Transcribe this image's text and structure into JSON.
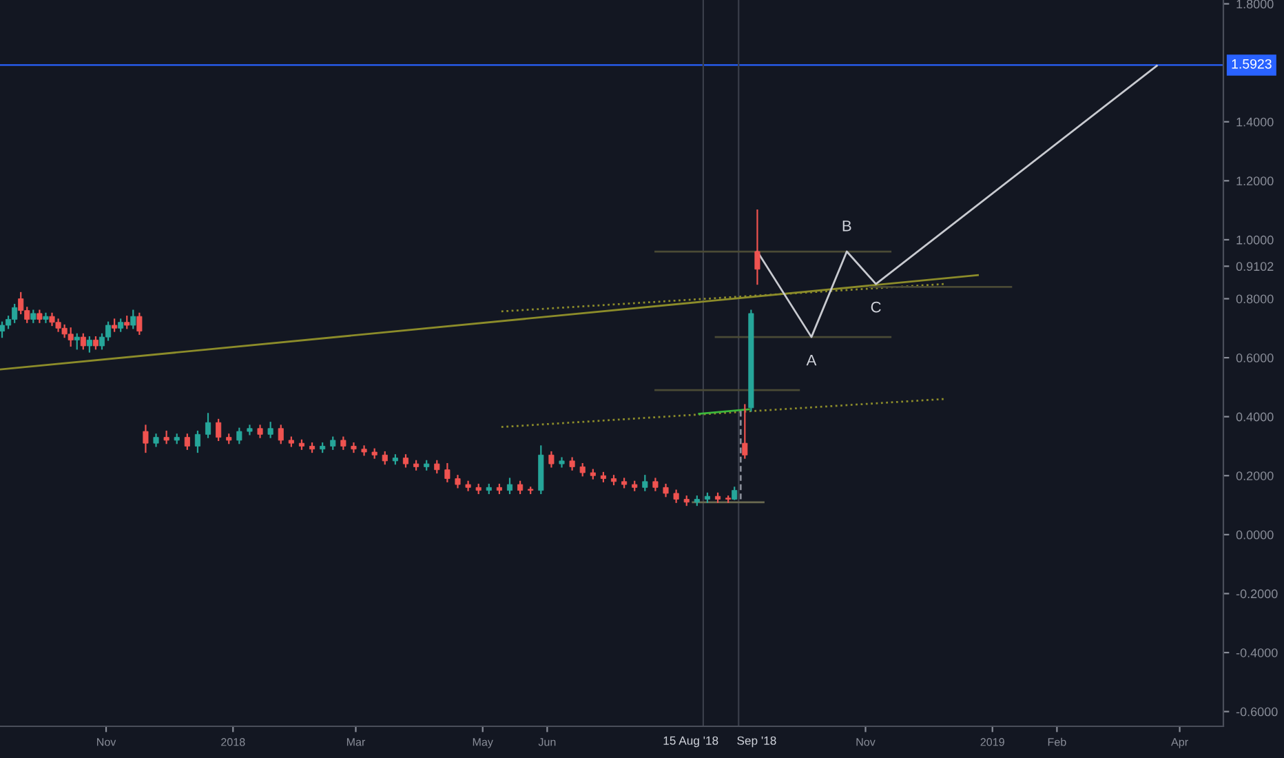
{
  "chart_data": {
    "type": "candlestick",
    "legend": false,
    "grid": false,
    "xlim": [
      "2017-09-11",
      "2019-04-22"
    ],
    "ylim": [
      -0.65,
      1.813
    ],
    "xticks": [
      {
        "value": "2017-11-01",
        "label": "Nov"
      },
      {
        "value": "2018-01-01",
        "label": "2018"
      },
      {
        "value": "2018-03-01",
        "label": "Mar"
      },
      {
        "value": "2018-05-01",
        "label": "May"
      },
      {
        "value": "2018-06-01",
        "label": "Jun"
      },
      {
        "value": "2018-11-01",
        "label": "Nov"
      },
      {
        "value": "2019-01-01",
        "label": "2019"
      },
      {
        "value": "2019-02-01",
        "label": "Feb"
      },
      {
        "value": "2019-04-01",
        "label": "Apr"
      }
    ],
    "yticks": [
      {
        "value": 1.8,
        "label": "1.8000"
      },
      {
        "value": 1.4,
        "label": "1.4000"
      },
      {
        "value": 1.2,
        "label": "1.2000"
      },
      {
        "value": 1.0,
        "label": "1.0000"
      },
      {
        "value": 0.9102,
        "label": "0.9102"
      },
      {
        "value": 0.8,
        "label": "0.8000"
      },
      {
        "value": 0.6,
        "label": "0.6000"
      },
      {
        "value": 0.4,
        "label": "0.4000"
      },
      {
        "value": 0.2,
        "label": "0.2000"
      },
      {
        "value": 0.0,
        "label": "0.0000"
      },
      {
        "value": -0.2,
        "label": "-0.2000"
      },
      {
        "value": -0.4,
        "label": "-0.4000"
      },
      {
        "value": -0.6,
        "label": "-0.6000"
      }
    ],
    "ref_lines": [
      {
        "axis": "y",
        "value": 1.5923,
        "label": "1.5923",
        "color": "#2962ff"
      },
      {
        "axis": "x",
        "value": "2018-08-15",
        "label": "15 Aug '18",
        "color": "#3a3e4a"
      },
      {
        "axis": "x",
        "value": "2018-09-01",
        "label": "Sep '18",
        "color": "#3a3e4a"
      }
    ],
    "annotations": [
      {
        "text": "A",
        "x": "2018-10-06",
        "y": 0.67
      },
      {
        "text": "B",
        "x": "2018-10-23",
        "y": 0.96
      },
      {
        "text": "C",
        "x": "2018-11-06",
        "y": 0.85
      }
    ],
    "series": [
      {
        "x": [
          "2017-09-12",
          "2017-09-15",
          "2017-09-18",
          "2017-09-21",
          "2017-09-24",
          "2017-09-27",
          "2017-09-30",
          "2017-10-03",
          "2017-10-06",
          "2017-10-09",
          "2017-10-12",
          "2017-10-15",
          "2017-10-18",
          "2017-10-21",
          "2017-10-24",
          "2017-10-27",
          "2017-10-30",
          "2017-11-02",
          "2017-11-05",
          "2017-11-08",
          "2017-11-11",
          "2017-11-14",
          "2017-11-17",
          "2017-11-20",
          "2017-11-25",
          "2017-11-30",
          "2017-12-05",
          "2017-12-10",
          "2017-12-15",
          "2017-12-20",
          "2017-12-25",
          "2017-12-30",
          "2018-01-04",
          "2018-01-09",
          "2018-01-14",
          "2018-01-19",
          "2018-01-24",
          "2018-01-29",
          "2018-02-03",
          "2018-02-08",
          "2018-02-13",
          "2018-02-18",
          "2018-02-23",
          "2018-02-28",
          "2018-03-05",
          "2018-03-10",
          "2018-03-15",
          "2018-03-20",
          "2018-03-25",
          "2018-03-30",
          "2018-04-04",
          "2018-04-09",
          "2018-04-14",
          "2018-04-19",
          "2018-04-24",
          "2018-04-29",
          "2018-05-04",
          "2018-05-09",
          "2018-05-14",
          "2018-05-19",
          "2018-05-24",
          "2018-05-29",
          "2018-06-03",
          "2018-06-08",
          "2018-06-13",
          "2018-06-18",
          "2018-06-23",
          "2018-06-28",
          "2018-07-03",
          "2018-07-08",
          "2018-07-13",
          "2018-07-18",
          "2018-07-23",
          "2018-07-28",
          "2018-08-02",
          "2018-08-07",
          "2018-08-12",
          "2018-08-17",
          "2018-08-22",
          "2018-08-27",
          "2018-08-30",
          "2018-09-04",
          "2018-09-07",
          "2018-09-10"
        ],
        "ohlc": [
          [
            0.69,
            0.72,
            0.67,
            0.71
          ],
          [
            0.71,
            0.74,
            0.7,
            0.73
          ],
          [
            0.73,
            0.78,
            0.72,
            0.77
          ],
          [
            0.8,
            0.82,
            0.75,
            0.76
          ],
          [
            0.76,
            0.77,
            0.72,
            0.73
          ],
          [
            0.73,
            0.76,
            0.72,
            0.75
          ],
          [
            0.75,
            0.76,
            0.72,
            0.73
          ],
          [
            0.73,
            0.75,
            0.72,
            0.74
          ],
          [
            0.74,
            0.75,
            0.71,
            0.72
          ],
          [
            0.72,
            0.73,
            0.69,
            0.7
          ],
          [
            0.7,
            0.71,
            0.67,
            0.68
          ],
          [
            0.68,
            0.7,
            0.64,
            0.66
          ],
          [
            0.66,
            0.68,
            0.63,
            0.67
          ],
          [
            0.67,
            0.68,
            0.63,
            0.64
          ],
          [
            0.64,
            0.67,
            0.62,
            0.66
          ],
          [
            0.66,
            0.67,
            0.63,
            0.64
          ],
          [
            0.64,
            0.68,
            0.63,
            0.67
          ],
          [
            0.67,
            0.72,
            0.66,
            0.71
          ],
          [
            0.71,
            0.73,
            0.69,
            0.7
          ],
          [
            0.7,
            0.73,
            0.69,
            0.72
          ],
          [
            0.72,
            0.74,
            0.7,
            0.71
          ],
          [
            0.71,
            0.76,
            0.7,
            0.74
          ],
          [
            0.74,
            0.75,
            0.68,
            0.69
          ],
          [
            0.35,
            0.37,
            0.28,
            0.31
          ],
          [
            0.31,
            0.34,
            0.3,
            0.33
          ],
          [
            0.33,
            0.35,
            0.31,
            0.32
          ],
          [
            0.32,
            0.34,
            0.31,
            0.33
          ],
          [
            0.33,
            0.34,
            0.29,
            0.3
          ],
          [
            0.3,
            0.35,
            0.28,
            0.34
          ],
          [
            0.34,
            0.41,
            0.33,
            0.38
          ],
          [
            0.38,
            0.39,
            0.32,
            0.33
          ],
          [
            0.33,
            0.34,
            0.31,
            0.32
          ],
          [
            0.32,
            0.36,
            0.31,
            0.35
          ],
          [
            0.35,
            0.37,
            0.34,
            0.36
          ],
          [
            0.36,
            0.37,
            0.33,
            0.34
          ],
          [
            0.34,
            0.38,
            0.33,
            0.36
          ],
          [
            0.36,
            0.37,
            0.31,
            0.32
          ],
          [
            0.32,
            0.33,
            0.3,
            0.31
          ],
          [
            0.31,
            0.32,
            0.29,
            0.3
          ],
          [
            0.3,
            0.31,
            0.28,
            0.29
          ],
          [
            0.29,
            0.31,
            0.28,
            0.3
          ],
          [
            0.3,
            0.33,
            0.29,
            0.32
          ],
          [
            0.32,
            0.33,
            0.29,
            0.3
          ],
          [
            0.3,
            0.31,
            0.28,
            0.29
          ],
          [
            0.29,
            0.3,
            0.27,
            0.28
          ],
          [
            0.28,
            0.29,
            0.26,
            0.27
          ],
          [
            0.27,
            0.28,
            0.24,
            0.25
          ],
          [
            0.25,
            0.27,
            0.24,
            0.26
          ],
          [
            0.26,
            0.27,
            0.23,
            0.24
          ],
          [
            0.24,
            0.25,
            0.22,
            0.23
          ],
          [
            0.23,
            0.25,
            0.22,
            0.24
          ],
          [
            0.24,
            0.25,
            0.21,
            0.22
          ],
          [
            0.22,
            0.24,
            0.18,
            0.19
          ],
          [
            0.19,
            0.2,
            0.16,
            0.17
          ],
          [
            0.17,
            0.18,
            0.15,
            0.16
          ],
          [
            0.16,
            0.17,
            0.14,
            0.15
          ],
          [
            0.15,
            0.17,
            0.14,
            0.16
          ],
          [
            0.16,
            0.17,
            0.14,
            0.15
          ],
          [
            0.15,
            0.19,
            0.14,
            0.17
          ],
          [
            0.17,
            0.18,
            0.14,
            0.15
          ],
          [
            0.15,
            0.16,
            0.14,
            0.15
          ],
          [
            0.15,
            0.3,
            0.14,
            0.27
          ],
          [
            0.27,
            0.28,
            0.23,
            0.24
          ],
          [
            0.24,
            0.26,
            0.23,
            0.25
          ],
          [
            0.25,
            0.26,
            0.22,
            0.23
          ],
          [
            0.23,
            0.24,
            0.2,
            0.21
          ],
          [
            0.21,
            0.22,
            0.19,
            0.2
          ],
          [
            0.2,
            0.21,
            0.18,
            0.19
          ],
          [
            0.19,
            0.2,
            0.17,
            0.18
          ],
          [
            0.18,
            0.19,
            0.16,
            0.17
          ],
          [
            0.17,
            0.18,
            0.15,
            0.16
          ],
          [
            0.16,
            0.2,
            0.15,
            0.18
          ],
          [
            0.18,
            0.19,
            0.15,
            0.16
          ],
          [
            0.16,
            0.17,
            0.13,
            0.14
          ],
          [
            0.14,
            0.15,
            0.11,
            0.12
          ],
          [
            0.12,
            0.13,
            0.1,
            0.11
          ],
          [
            0.11,
            0.13,
            0.1,
            0.12
          ],
          [
            0.12,
            0.14,
            0.11,
            0.13
          ],
          [
            0.13,
            0.14,
            0.11,
            0.12
          ],
          [
            0.12,
            0.13,
            0.11,
            0.12
          ],
          [
            0.12,
            0.16,
            0.12,
            0.15
          ],
          [
            0.31,
            0.44,
            0.26,
            0.27
          ],
          [
            0.43,
            0.76,
            0.42,
            0.75
          ],
          [
            0.96,
            1.1,
            0.85,
            0.9
          ]
        ],
        "colors": [
          "#26a69a",
          "#26a69a",
          "#26a69a",
          "#ef5350",
          "#ef5350",
          "#26a69a",
          "#ef5350",
          "#26a69a",
          "#ef5350",
          "#ef5350",
          "#ef5350",
          "#ef5350",
          "#26a69a",
          "#ef5350",
          "#26a69a",
          "#ef5350",
          "#26a69a",
          "#26a69a",
          "#ef5350",
          "#26a69a",
          "#ef5350",
          "#26a69a",
          "#ef5350",
          "#ef5350",
          "#26a69a",
          "#ef5350",
          "#26a69a",
          "#ef5350",
          "#26a69a",
          "#26a69a",
          "#ef5350",
          "#ef5350",
          "#26a69a",
          "#26a69a",
          "#ef5350",
          "#26a69a",
          "#ef5350",
          "#ef5350",
          "#ef5350",
          "#ef5350",
          "#26a69a",
          "#26a69a",
          "#ef5350",
          "#ef5350",
          "#ef5350",
          "#ef5350",
          "#ef5350",
          "#26a69a",
          "#ef5350",
          "#ef5350",
          "#26a69a",
          "#ef5350",
          "#ef5350",
          "#ef5350",
          "#ef5350",
          "#ef5350",
          "#26a69a",
          "#ef5350",
          "#26a69a",
          "#ef5350",
          "#ef5350",
          "#26a69a",
          "#ef5350",
          "#26a69a",
          "#ef5350",
          "#ef5350",
          "#ef5350",
          "#ef5350",
          "#ef5350",
          "#ef5350",
          "#ef5350",
          "#26a69a",
          "#ef5350",
          "#ef5350",
          "#ef5350",
          "#ef5350",
          "#26a69a",
          "#26a69a",
          "#ef5350",
          "#ef5350",
          "#26a69a",
          "#ef5350",
          "#26a69a",
          "#ef5350"
        ]
      },
      {
        "type": "line",
        "x": [
          "2017-09-11",
          "2018-12-25"
        ],
        "values": [
          0.56,
          0.88
        ],
        "color": "#8c8c2a",
        "line_style": "solid"
      },
      {
        "type": "line",
        "x": [
          "2018-05-10",
          "2018-12-09"
        ],
        "values": [
          0.757,
          0.85
        ],
        "color": "#8c8c2a",
        "line_style": "dotted"
      },
      {
        "type": "line",
        "x": [
          "2018-05-10",
          "2018-12-09"
        ],
        "values": [
          0.365,
          0.46
        ],
        "color": "#8c8c2a",
        "line_style": "dotted"
      },
      {
        "type": "line",
        "x": [
          "2018-07-23",
          "2018-11-13"
        ],
        "values": [
          0.96,
          0.96
        ],
        "color": "#4a4a35",
        "line_style": "solid"
      },
      {
        "type": "line",
        "x": [
          "2018-08-21",
          "2018-11-13"
        ],
        "values": [
          0.67,
          0.67
        ],
        "color": "#4a4a35",
        "line_style": "solid"
      },
      {
        "type": "line",
        "x": [
          "2018-07-23",
          "2018-09-30"
        ],
        "values": [
          0.49,
          0.49
        ],
        "color": "#4a4a35",
        "line_style": "solid"
      },
      {
        "type": "line",
        "x": [
          "2018-11-03",
          "2019-01-10"
        ],
        "values": [
          0.84,
          0.84
        ],
        "color": "#4a4a35",
        "line_style": "solid"
      },
      {
        "type": "line",
        "x": [
          "2018-08-10",
          "2018-09-13"
        ],
        "values": [
          0.11,
          0.11
        ],
        "color": "#6a6a50",
        "line_style": "solid"
      },
      {
        "type": "line",
        "x": [
          "2018-09-02",
          "2018-09-02"
        ],
        "values": [
          0.42,
          0.12
        ],
        "color": "#8a8e99",
        "line_style": "dashed"
      },
      {
        "type": "line",
        "x": [
          "2018-08-13",
          "2018-09-06"
        ],
        "values": [
          0.41,
          0.425
        ],
        "color": "#3cb83c",
        "line_style": "solid"
      },
      {
        "type": "line",
        "x": [
          "2018-09-10",
          "2018-10-06",
          "2018-10-23",
          "2018-11-06",
          "2019-03-21"
        ],
        "values": [
          0.96,
          0.67,
          0.96,
          0.85,
          1.59
        ],
        "color": "#c8cad0",
        "line_style": "solid"
      }
    ]
  }
}
